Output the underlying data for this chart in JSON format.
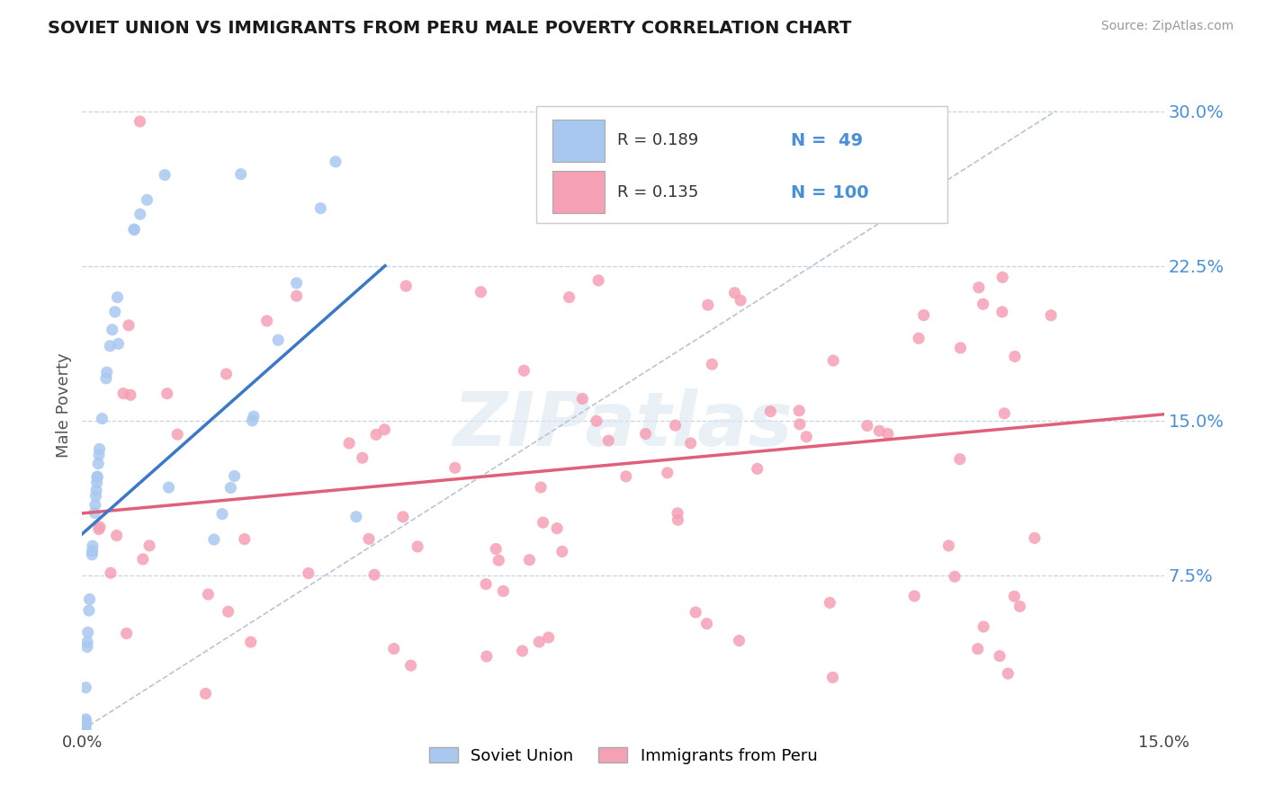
{
  "title": "SOVIET UNION VS IMMIGRANTS FROM PERU MALE POVERTY CORRELATION CHART",
  "source": "Source: ZipAtlas.com",
  "ylabel": "Male Poverty",
  "ytick_values": [
    0.075,
    0.15,
    0.225,
    0.3
  ],
  "ytick_labels": [
    "7.5%",
    "15.0%",
    "22.5%",
    "30.0%"
  ],
  "xlim": [
    0,
    0.15
  ],
  "ylim": [
    0,
    0.315
  ],
  "legend_blue_R": "R = 0.189",
  "legend_blue_N": "N =  49",
  "legend_pink_R": "R = 0.135",
  "legend_pink_N": "N = 100",
  "legend_label_blue": "Soviet Union",
  "legend_label_pink": "Immigrants from Peru",
  "color_blue": "#a8c8f0",
  "color_pink": "#f5a0b5",
  "color_blue_line": "#3a78c9",
  "color_pink_line": "#e0607a",
  "color_axis_text": "#4a90d9",
  "watermark": "ZIPatlas",
  "blue_R": 0.189,
  "pink_R": 0.135,
  "blue_N": 49,
  "pink_N": 100
}
